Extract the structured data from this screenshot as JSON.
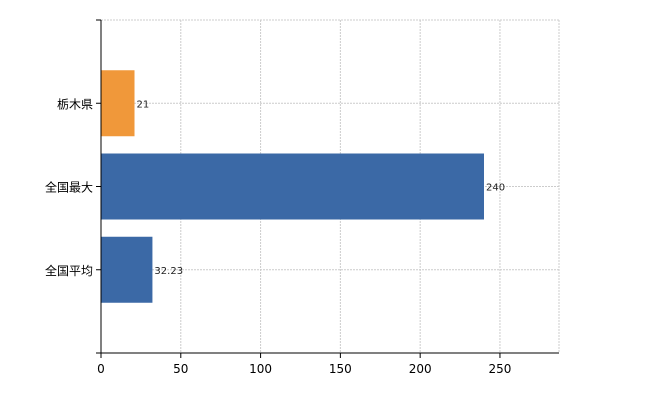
{
  "chart_data": {
    "type": "bar",
    "orientation": "horizontal",
    "categories": [
      "栃木県",
      "全国最大",
      "全国平均"
    ],
    "values": [
      21,
      240,
      32.23
    ],
    "data_labels": [
      "21",
      "240",
      "32.23"
    ],
    "bar_colors": [
      "#f0983a",
      "#3b69a6"
    ],
    "color_by_category": {
      "栃木県": "#f0983a",
      "全国最大": "#3b69a6",
      "全国平均": "#3b69a6"
    },
    "xlim": [
      0,
      287
    ],
    "x_ticks": [
      0,
      50,
      100,
      150,
      200,
      250
    ],
    "x_tick_labels": [
      "0",
      "50",
      "100",
      "150",
      "200",
      "250"
    ],
    "grid": true,
    "title": "",
    "xlabel": "",
    "ylabel": "",
    "legend": "none"
  }
}
